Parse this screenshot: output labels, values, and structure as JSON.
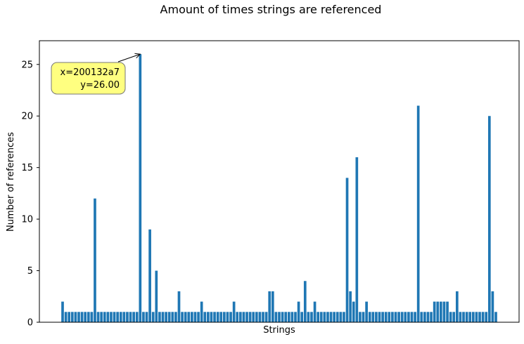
{
  "chart_data": {
    "type": "bar",
    "title": "Amount of times strings are referenced",
    "xlabel": "Strings",
    "ylabel": "Number of references",
    "ylim": [
      0,
      27.3
    ],
    "yticks": [
      0,
      5,
      10,
      15,
      20,
      25
    ],
    "x_tick_labels_shown": false,
    "bar_color": "#1f77b4",
    "values": [
      2,
      1,
      1,
      1,
      1,
      1,
      1,
      1,
      1,
      1,
      12,
      1,
      1,
      1,
      1,
      1,
      1,
      1,
      1,
      1,
      1,
      1,
      1,
      1,
      26,
      1,
      1,
      9,
      1,
      5,
      1,
      1,
      1,
      1,
      1,
      1,
      3,
      1,
      1,
      1,
      1,
      1,
      1,
      2,
      1,
      1,
      1,
      1,
      1,
      1,
      1,
      1,
      1,
      2,
      1,
      1,
      1,
      1,
      1,
      1,
      1,
      1,
      1,
      1,
      3,
      3,
      1,
      1,
      1,
      1,
      1,
      1,
      1,
      2,
      1,
      4,
      1,
      1,
      2,
      1,
      1,
      1,
      1,
      1,
      1,
      1,
      1,
      1,
      14,
      3,
      2,
      16,
      1,
      1,
      2,
      1,
      1,
      1,
      1,
      1,
      1,
      1,
      1,
      1,
      1,
      1,
      1,
      1,
      1,
      1,
      21,
      1,
      1,
      1,
      1,
      2,
      2,
      2,
      2,
      2,
      1,
      1,
      3,
      1,
      1,
      1,
      1,
      1,
      1,
      1,
      1,
      1,
      20,
      3,
      1
    ],
    "annotation": {
      "x_text": "x=200132a7",
      "y_text": "y=26.00",
      "bar_index": 24,
      "box_color": "#ffff80"
    }
  }
}
